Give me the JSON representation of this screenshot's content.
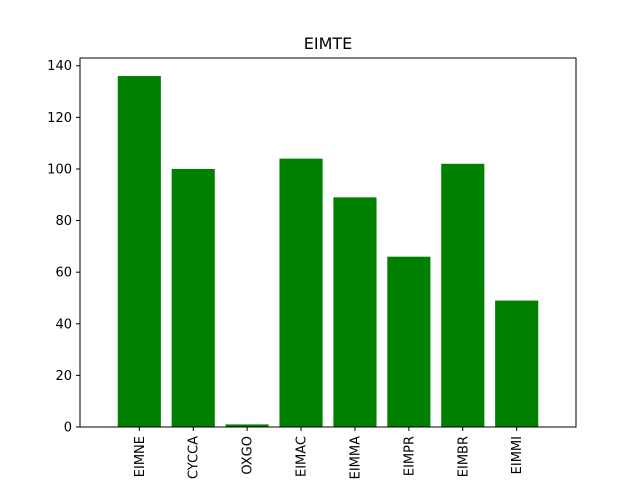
{
  "chart_data": {
    "type": "bar",
    "title": "EIMTE",
    "xlabel": "",
    "ylabel": "",
    "categories": [
      "EIMNE",
      "CYCCA",
      "OXGO",
      "EIMAC",
      "EIMMA",
      "EIMPR",
      "EIMBR",
      "EIMMI"
    ],
    "values": [
      136,
      100,
      1,
      104,
      89,
      66,
      102,
      49
    ],
    "ylim": [
      0,
      143
    ],
    "yticks": [
      0,
      20,
      40,
      60,
      80,
      100,
      120,
      140
    ],
    "bar_color": "#008000",
    "grid": false,
    "x_tick_rotation": "vertical"
  }
}
